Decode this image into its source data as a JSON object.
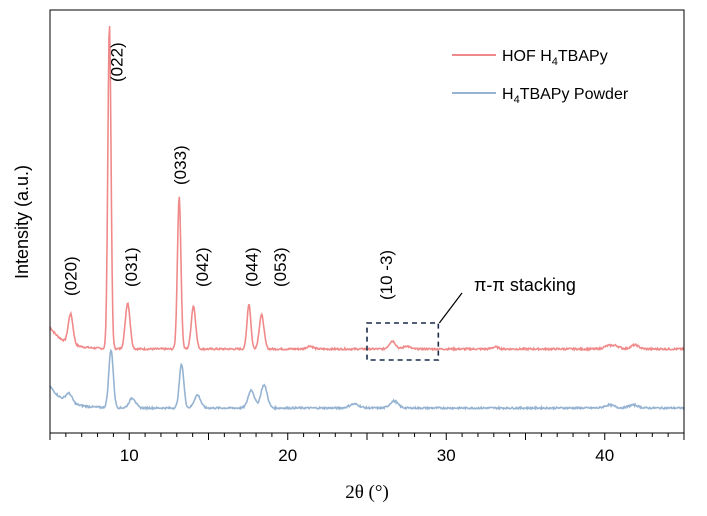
{
  "chart_data": {
    "type": "line",
    "title": "",
    "xlabel": "2θ (°)",
    "ylabel": "Intensity (a.u.)",
    "xlim": [
      5,
      45
    ],
    "xticks": [
      10,
      20,
      30,
      40
    ],
    "yticks": [],
    "grid": false,
    "legend": "top-right",
    "series": [
      {
        "name": "HOF H4TBAPy",
        "label_main": "HOF H",
        "label_sub": "4",
        "label_rest": "TBAPy",
        "color": "#f08a8a",
        "peaks": [
          {
            "x": 6.3,
            "height": 0.3,
            "width": 0.15
          },
          {
            "x": 8.75,
            "height": 3.25,
            "width": 0.1
          },
          {
            "x": 9.9,
            "height": 0.46,
            "width": 0.15
          },
          {
            "x": 13.15,
            "height": 1.52,
            "width": 0.11
          },
          {
            "x": 14.05,
            "height": 0.43,
            "width": 0.14
          },
          {
            "x": 17.55,
            "height": 0.45,
            "width": 0.12
          },
          {
            "x": 18.35,
            "height": 0.34,
            "width": 0.15
          },
          {
            "x": 21.4,
            "height": 0.03,
            "width": 0.2
          },
          {
            "x": 26.6,
            "height": 0.08,
            "width": 0.2
          },
          {
            "x": 27.5,
            "height": 0.03,
            "width": 0.2
          },
          {
            "x": 33.1,
            "height": 0.02,
            "width": 0.2
          },
          {
            "x": 40.2,
            "height": 0.03,
            "width": 0.25
          },
          {
            "x": 40.7,
            "height": 0.03,
            "width": 0.25
          },
          {
            "x": 41.9,
            "height": 0.04,
            "width": 0.25
          }
        ]
      },
      {
        "name": "H4TBAPy Powder",
        "label_main": "H",
        "label_sub": "4",
        "label_rest": "TBAPy Powder",
        "color": "#96b4d2",
        "peaks": [
          {
            "x": 6.2,
            "height": 0.09,
            "width": 0.2
          },
          {
            "x": 8.85,
            "height": 0.58,
            "width": 0.14
          },
          {
            "x": 10.2,
            "height": 0.1,
            "width": 0.2
          },
          {
            "x": 13.3,
            "height": 0.44,
            "width": 0.14
          },
          {
            "x": 14.3,
            "height": 0.13,
            "width": 0.2
          },
          {
            "x": 17.7,
            "height": 0.18,
            "width": 0.2
          },
          {
            "x": 18.5,
            "height": 0.23,
            "width": 0.2
          },
          {
            "x": 24.2,
            "height": 0.04,
            "width": 0.3
          },
          {
            "x": 26.7,
            "height": 0.07,
            "width": 0.25
          },
          {
            "x": 40.3,
            "height": 0.03,
            "width": 0.3
          },
          {
            "x": 41.8,
            "height": 0.03,
            "width": 0.3
          }
        ]
      }
    ],
    "annotations": [
      {
        "text": "(020)",
        "x": 6.3
      },
      {
        "text": "(022)",
        "x": 9.2
      },
      {
        "text": "(031)",
        "x": 10.1
      },
      {
        "text": "(033)",
        "x": 13.2
      },
      {
        "text": "(042)",
        "x": 14.6
      },
      {
        "text": "(044)",
        "x": 17.7
      },
      {
        "text": "(053)",
        "x": 19.5
      },
      {
        "text": "(10 -3)",
        "x": 26.2
      }
    ],
    "stacking_label": "π-π stacking",
    "stacking_box_x": [
      25,
      29.5
    ]
  }
}
